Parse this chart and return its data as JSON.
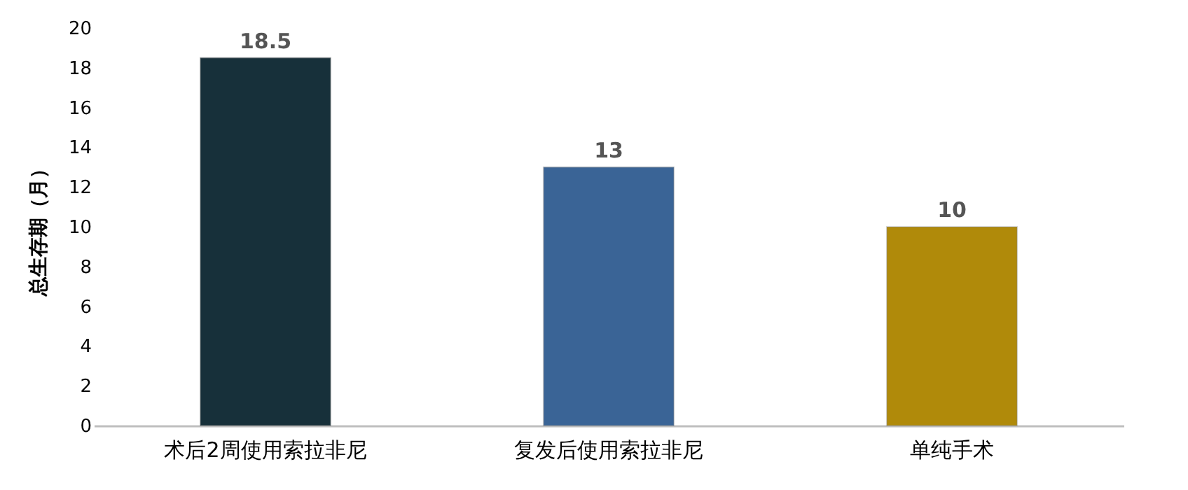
{
  "chart_data": {
    "type": "bar",
    "ylabel": "总生存期（月）",
    "categories": [
      "术后2周使用索拉非尼",
      "复发后使用索拉非尼",
      "单纯手术"
    ],
    "values": [
      18.5,
      13,
      10
    ],
    "colors": [
      "#17303a",
      "#3a6496",
      "#b08a0a"
    ],
    "ylim": [
      0,
      20
    ],
    "yticks": [
      0,
      2,
      4,
      6,
      8,
      10,
      12,
      14,
      16,
      18,
      20
    ],
    "data_labels": true,
    "grid": false
  }
}
